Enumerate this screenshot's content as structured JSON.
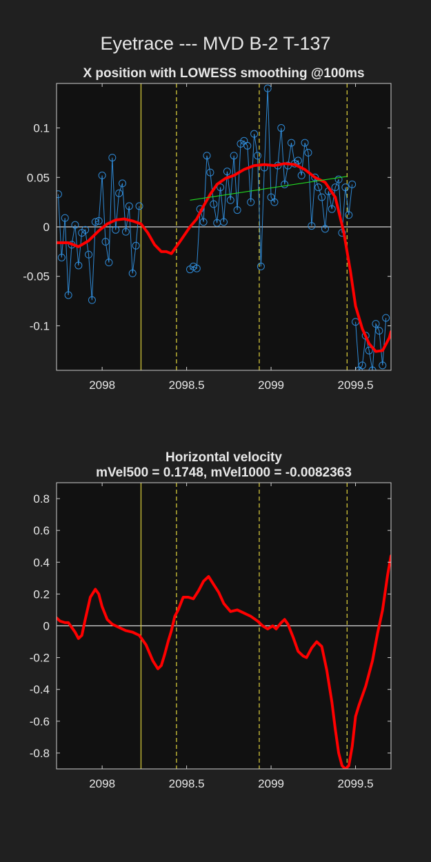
{
  "figure": {
    "suptitle": "Eyetrace --- MVD B-2 T-137",
    "colors": {
      "figure_bg": "#202020",
      "axes_bg": "#111111",
      "text": "#e8e8e8",
      "raw": "#2f8bd8",
      "smooth": "#ff0000",
      "fit": "#22dd22",
      "event": "#d4c83a",
      "zero": "#d8d8d8"
    }
  },
  "chart_data": [
    {
      "type": "line",
      "title": "X position with LOWESS smoothing @100ms",
      "xlabel": "",
      "ylabel": "",
      "xlim": [
        2097.73,
        2099.71
      ],
      "ylim": [
        -0.145,
        0.145
      ],
      "xticks": [
        2098,
        2098.5,
        2099,
        2099.5
      ],
      "xtick_labels": [
        "2098",
        "2098.5",
        "2099",
        "2099.5"
      ],
      "yticks": [
        -0.1,
        -0.05,
        0,
        0.05,
        0.1
      ],
      "ytick_labels": [
        "-0.1",
        "-0.05",
        "0",
        "0.05",
        "0.1"
      ],
      "grid": false,
      "zero_line": 0,
      "event_lines": [
        {
          "x": 2098.23,
          "style": "solid"
        },
        {
          "x": 2098.44,
          "style": "dashed"
        },
        {
          "x": 2098.93,
          "style": "dashed"
        },
        {
          "x": 2099.45,
          "style": "dashed"
        }
      ],
      "series": [
        {
          "role": "raw",
          "marker": "circle",
          "segments": [
            {
              "x": [
                2097.74,
                2097.76,
                2097.78,
                2097.8,
                2097.82,
                2097.84,
                2097.86,
                2097.88,
                2097.9,
                2097.92,
                2097.94,
                2097.96,
                2097.98,
                2098.0,
                2098.02,
                2098.04,
                2098.06,
                2098.08,
                2098.1,
                2098.12,
                2098.14,
                2098.16,
                2098.18,
                2098.2,
                2098.22
              ],
              "y": [
                0.033,
                -0.031,
                0.009,
                -0.069,
                -0.018,
                0.002,
                -0.039,
                -0.006,
                -0.003,
                -0.028,
                -0.074,
                0.005,
                0.006,
                0.052,
                -0.015,
                -0.036,
                0.07,
                -0.003,
                0.034,
                0.044,
                -0.005,
                0.021,
                -0.047,
                -0.019,
                0.021
              ]
            },
            {
              "x": [
                2098.52,
                2098.54,
                2098.56,
                2098.58,
                2098.6,
                2098.62,
                2098.64,
                2098.66,
                2098.68,
                2098.7,
                2098.72,
                2098.74,
                2098.76,
                2098.78,
                2098.8,
                2098.82,
                2098.84,
                2098.86,
                2098.88,
                2098.9,
                2098.92,
                2098.94,
                2098.96,
                2098.98,
                2099.0,
                2099.02,
                2099.04,
                2099.06,
                2099.08,
                2099.1,
                2099.12,
                2099.14,
                2099.16,
                2099.18,
                2099.2,
                2099.22,
                2099.24,
                2099.26,
                2099.28,
                2099.3,
                2099.32,
                2099.34,
                2099.36,
                2099.38,
                2099.4,
                2099.42,
                2099.44,
                2099.46,
                2099.48
              ],
              "y": [
                -0.043,
                -0.04,
                -0.042,
                0.018,
                0.005,
                0.072,
                0.055,
                0.023,
                0.004,
                0.04,
                0.005,
                0.056,
                0.027,
                0.072,
                0.017,
                0.084,
                0.087,
                0.082,
                0.025,
                0.094,
                0.072,
                -0.04,
                0.06,
                0.14,
                0.03,
                0.025,
                0.062,
                0.1,
                0.043,
                0.062,
                0.085,
                0.064,
                0.067,
                0.052,
                0.085,
                0.075,
                0.001,
                0.05,
                0.04,
                0.03,
                -0.002,
                0.036,
                0.018,
                0.04,
                0.048,
                -0.006,
                0.04,
                0.012,
                0.043
              ]
            },
            {
              "x": [
                2099.5,
                2099.52,
                2099.54,
                2099.56,
                2099.58,
                2099.6,
                2099.62,
                2099.64,
                2099.66,
                2099.68
              ],
              "y": [
                -0.096,
                -0.145,
                -0.14,
                -0.11,
                -0.125,
                -0.145,
                -0.098,
                -0.105,
                -0.14,
                -0.092
              ]
            }
          ]
        },
        {
          "role": "lowess-smoothed",
          "x": [
            2097.73,
            2097.8,
            2097.86,
            2097.92,
            2097.98,
            2098.03,
            2098.08,
            2098.13,
            2098.18,
            2098.23,
            2098.27,
            2098.31,
            2098.35,
            2098.38,
            2098.41,
            2098.46,
            2098.52,
            2098.56,
            2098.6,
            2098.64,
            2098.68,
            2098.73,
            2098.78,
            2098.84,
            2098.9,
            2098.96,
            2099.02,
            2099.08,
            2099.14,
            2099.2,
            2099.26,
            2099.32,
            2099.38,
            2099.43,
            2099.47,
            2099.5,
            2099.54,
            2099.58,
            2099.62,
            2099.66,
            2099.7,
            2099.71
          ],
          "y": [
            -0.016,
            -0.016,
            -0.02,
            -0.014,
            -0.004,
            0.003,
            0.007,
            0.008,
            0.006,
            0.003,
            -0.006,
            -0.018,
            -0.025,
            -0.025,
            -0.027,
            -0.015,
            0.0,
            0.008,
            0.021,
            0.033,
            0.043,
            0.049,
            0.052,
            0.058,
            0.062,
            0.063,
            0.062,
            0.064,
            0.063,
            0.058,
            0.05,
            0.045,
            0.03,
            -0.005,
            -0.045,
            -0.08,
            -0.103,
            -0.118,
            -0.126,
            -0.125,
            -0.112,
            -0.106
          ]
        },
        {
          "role": "linear-fit",
          "x": [
            2098.52,
            2099.45
          ],
          "y": [
            0.027,
            0.051
          ]
        }
      ]
    },
    {
      "type": "line",
      "title": "Horizontal velocity",
      "subtitle": "mVel500 = 0.1748, mVel1000 = -0.0082363",
      "xlabel": "",
      "ylabel": "",
      "xlim": [
        2097.73,
        2099.71
      ],
      "ylim": [
        -0.9,
        0.9
      ],
      "xticks": [
        2098,
        2098.5,
        2099,
        2099.5
      ],
      "xtick_labels": [
        "2098",
        "2098.5",
        "2099",
        "2099.5"
      ],
      "yticks": [
        -0.8,
        -0.6,
        -0.4,
        -0.2,
        0,
        0.2,
        0.4,
        0.6,
        0.8
      ],
      "ytick_labels": [
        "-0.8",
        "-0.6",
        "-0.4",
        "-0.2",
        "0",
        "0.2",
        "0.4",
        "0.6",
        "0.8"
      ],
      "grid": false,
      "zero_line": 0,
      "event_lines": [
        {
          "x": 2098.23,
          "style": "solid"
        },
        {
          "x": 2098.44,
          "style": "dashed"
        },
        {
          "x": 2098.93,
          "style": "dashed"
        },
        {
          "x": 2099.45,
          "style": "dashed"
        }
      ],
      "series": [
        {
          "role": "velocity",
          "x": [
            2097.73,
            2097.75,
            2097.78,
            2097.8,
            2097.84,
            2097.86,
            2097.88,
            2097.9,
            2097.93,
            2097.96,
            2097.98,
            2098.0,
            2098.03,
            2098.06,
            2098.1,
            2098.14,
            2098.18,
            2098.22,
            2098.26,
            2098.3,
            2098.33,
            2098.35,
            2098.37,
            2098.39,
            2098.41,
            2098.43,
            2098.45,
            2098.48,
            2098.51,
            2098.54,
            2098.57,
            2098.6,
            2098.63,
            2098.66,
            2098.69,
            2098.72,
            2098.76,
            2098.8,
            2098.84,
            2098.88,
            2098.92,
            2098.95,
            2098.98,
            2099.01,
            2099.03,
            2099.06,
            2099.08,
            2099.1,
            2099.13,
            2099.16,
            2099.19,
            2099.21,
            2099.24,
            2099.27,
            2099.3,
            2099.33,
            2099.36,
            2099.38,
            2099.4,
            2099.42,
            2099.44,
            2099.46,
            2099.48,
            2099.5,
            2099.52,
            2099.56,
            2099.6,
            2099.63,
            2099.66,
            2099.69,
            2099.71
          ],
          "y": [
            0.05,
            0.03,
            0.02,
            0.02,
            -0.04,
            -0.08,
            -0.06,
            0.04,
            0.18,
            0.23,
            0.2,
            0.12,
            0.04,
            0.01,
            -0.01,
            -0.03,
            -0.04,
            -0.06,
            -0.12,
            -0.22,
            -0.27,
            -0.25,
            -0.18,
            -0.1,
            -0.03,
            0.06,
            0.1,
            0.18,
            0.18,
            0.17,
            0.22,
            0.28,
            0.31,
            0.26,
            0.21,
            0.14,
            0.09,
            0.1,
            0.08,
            0.06,
            0.03,
            0.0,
            -0.02,
            0.0,
            -0.02,
            0.02,
            0.04,
            0.01,
            -0.07,
            -0.16,
            -0.19,
            -0.2,
            -0.14,
            -0.1,
            -0.13,
            -0.28,
            -0.48,
            -0.65,
            -0.8,
            -0.88,
            -0.9,
            -0.88,
            -0.76,
            -0.57,
            -0.5,
            -0.38,
            -0.22,
            -0.05,
            0.1,
            0.32,
            0.44
          ]
        }
      ]
    }
  ]
}
